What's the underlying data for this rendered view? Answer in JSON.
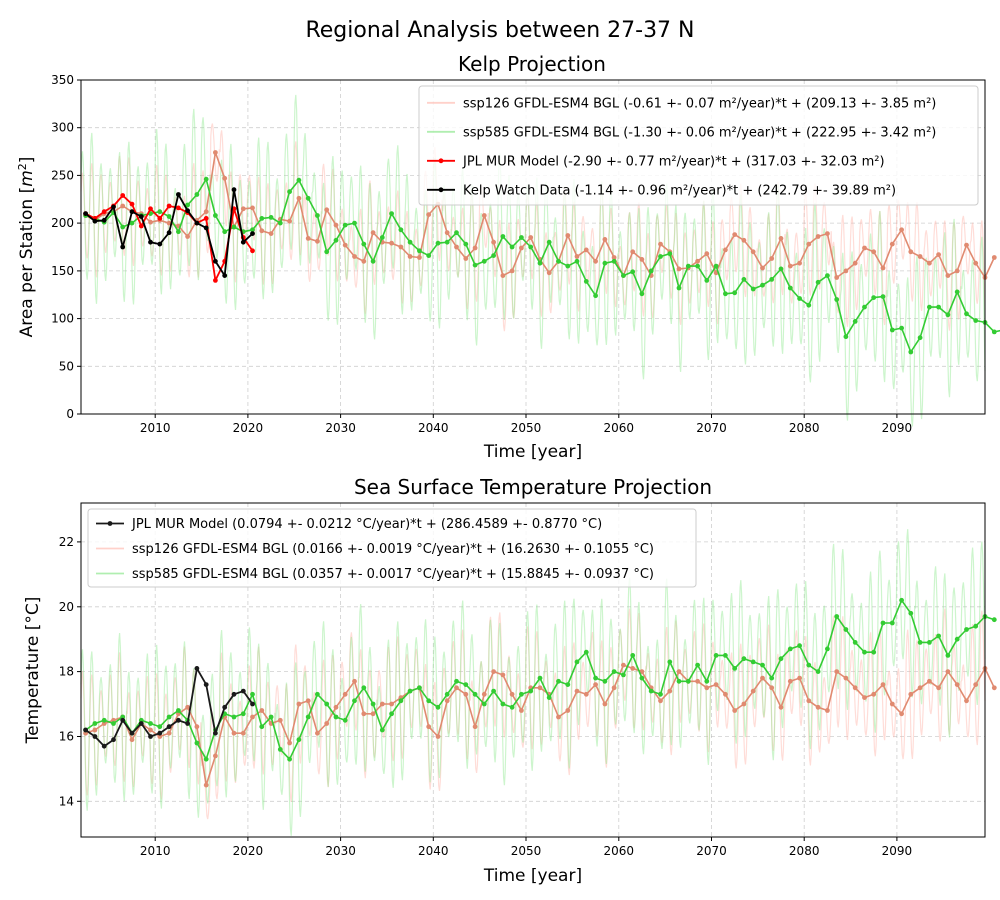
{
  "figure": {
    "suptitle": "Regional Analysis between 27-37 N"
  },
  "colors": {
    "ssp126_monthly": "#ffb3a8",
    "ssp126_annual": "#e08a70",
    "ssp585_monthly": "#90e890",
    "ssp585_annual": "#33cc33",
    "jpl_kelp": "#ff0000",
    "kelpwatch": "#000000",
    "jpl_sst": "#1a1a1a"
  },
  "chart_data": [
    {
      "type": "line",
      "title": "Kelp Projection",
      "xlabel": "Time [year]",
      "ylabel": "Area per Station [m²]",
      "xlim": [
        2002,
        2099.5
      ],
      "ylim": [
        0,
        350
      ],
      "xticks": [
        2010,
        2020,
        2030,
        2040,
        2050,
        2060,
        2070,
        2080,
        2090
      ],
      "yticks": [
        0,
        50,
        100,
        150,
        200,
        250,
        300,
        350
      ],
      "grid": true,
      "legend_position": "upper right",
      "legend": [
        {
          "label": "ssp126 GFDL-ESM4 BGL (-0.61 +- 0.07 m²/year)*t + (209.13 +- 3.85 m²)",
          "series": "ssp126_monthly"
        },
        {
          "label": "ssp585 GFDL-ESM4 BGL (-1.30 +- 0.06 m²/year)*t + (222.95 +- 3.42 m²)",
          "series": "ssp585_monthly"
        },
        {
          "label": "JPL MUR Model (-2.90 +- 0.77 m²/year)*t + (317.03 +- 32.03 m²)",
          "series": "jpl_kelp"
        },
        {
          "label": "Kelp Watch Data (-1.14 +- 0.96 m²/year)*t + (242.79 +- 39.89 m²)",
          "series": "kelpwatch"
        }
      ],
      "monthly_bands": {
        "ssp126": {
          "start": 2002,
          "amplitude": 60
        },
        "ssp585": {
          "start": 2002,
          "amplitude": 90
        }
      },
      "series": [
        {
          "key": "ssp126_annual",
          "start": 2002,
          "values": [
            208,
            203,
            210,
            212,
            218,
            212,
            210,
            201,
            203,
            200,
            197,
            186,
            203,
            212,
            274,
            247,
            196,
            215,
            216,
            192,
            189,
            204,
            202,
            226,
            184,
            181,
            214,
            198,
            177,
            165,
            160,
            190,
            180,
            179,
            175,
            165,
            164,
            209,
            220,
            190,
            175,
            163,
            174,
            208,
            180,
            145,
            150,
            174,
            185,
            162,
            148,
            160,
            187,
            165,
            172,
            160,
            183,
            164,
            145,
            170,
            162,
            145,
            178,
            170,
            152,
            153,
            160,
            168,
            148,
            172,
            188,
            182,
            170,
            153,
            163,
            184,
            155,
            158,
            178,
            186,
            189,
            143,
            150,
            158,
            174,
            170,
            153,
            178,
            193,
            170,
            165,
            158,
            167,
            145,
            150,
            177,
            158,
            143,
            164
          ]
        },
        {
          "key": "ssp585_annual",
          "start": 2002,
          "values": [
            208,
            205,
            201,
            211,
            196,
            200,
            208,
            210,
            212,
            207,
            191,
            219,
            230,
            246,
            208,
            191,
            196,
            191,
            193,
            205,
            206,
            200,
            233,
            245,
            226,
            208,
            170,
            182,
            198,
            200,
            178,
            160,
            185,
            210,
            193,
            180,
            171,
            166,
            179,
            180,
            190,
            178,
            156,
            160,
            166,
            186,
            175,
            185,
            175,
            158,
            180,
            160,
            155,
            160,
            139,
            124,
            158,
            160,
            145,
            149,
            126,
            150,
            165,
            168,
            132,
            155,
            155,
            140,
            155,
            126,
            127,
            141,
            131,
            135,
            141,
            152,
            132,
            121,
            114,
            138,
            145,
            120,
            81,
            97,
            112,
            122,
            123,
            88,
            90,
            65,
            80,
            112,
            112,
            104,
            128,
            105,
            98,
            96,
            86,
            88
          ]
        },
        {
          "key": "jpl_kelp",
          "start": 2002,
          "values": [
            210,
            205,
            212,
            218,
            229,
            220,
            197,
            215,
            205,
            218,
            216,
            211,
            200,
            205,
            140,
            160,
            215,
            185,
            171
          ]
        },
        {
          "key": "kelpwatch",
          "start": 2002,
          "values": [
            210,
            202,
            203,
            217,
            175,
            212,
            207,
            180,
            178,
            190,
            230,
            213,
            200,
            195,
            160,
            145,
            235,
            180,
            189
          ]
        }
      ]
    },
    {
      "type": "line",
      "title": "Sea Surface Temperature Projection",
      "xlabel": "Time [year]",
      "ylabel": "Temperature [°C]",
      "xlim": [
        2002,
        2099.5
      ],
      "ylim": [
        12.9,
        23.2
      ],
      "xticks": [
        2010,
        2020,
        2030,
        2040,
        2050,
        2060,
        2070,
        2080,
        2090
      ],
      "yticks": [
        14,
        16,
        18,
        20,
        22
      ],
      "grid": true,
      "legend_position": "upper left",
      "legend": [
        {
          "label": "JPL MUR Model (0.0794 +- 0.0212 °C/year)*t + (286.4589 +- 0.8770 °C)",
          "series": "jpl_sst"
        },
        {
          "label": "ssp126 GFDL-ESM4 BGL (0.0166 +- 0.0019 °C/year)*t + (16.2630 +- 0.1055 °C)",
          "series": "ssp126_monthly"
        },
        {
          "label": "ssp585 GFDL-ESM4 BGL (0.0357 +- 0.0017 °C/year)*t + (15.8845 +- 0.0937 °C)",
          "series": "ssp585_monthly"
        }
      ],
      "monthly_bands": {
        "ssp126": {
          "start": 2002,
          "amplitude": 2.0
        },
        "ssp585": {
          "start": 2002,
          "amplitude": 2.6
        }
      },
      "series": [
        {
          "key": "ssp126_annual",
          "start": 2002,
          "values": [
            16.1,
            16.2,
            16.4,
            16.5,
            16.6,
            15.9,
            16.4,
            16.2,
            16.0,
            16.1,
            16.7,
            16.9,
            16.3,
            14.5,
            15.4,
            16.6,
            16.1,
            16.1,
            16.6,
            16.8,
            16.4,
            16.5,
            15.8,
            17.0,
            17.1,
            16.1,
            16.4,
            16.9,
            17.3,
            17.7,
            16.7,
            16.7,
            17.0,
            17.0,
            17.2,
            17.4,
            17.5,
            16.3,
            16.0,
            17.1,
            17.5,
            17.3,
            16.3,
            17.3,
            18.0,
            17.9,
            17.3,
            16.8,
            17.5,
            17.5,
            17.3,
            16.6,
            16.8,
            17.4,
            17.3,
            17.6,
            17.0,
            17.5,
            18.2,
            18.1,
            18.0,
            17.5,
            17.1,
            17.4,
            18.0,
            17.7,
            17.7,
            17.5,
            17.6,
            17.3,
            16.8,
            17.0,
            17.4,
            17.8,
            17.5,
            16.9,
            17.7,
            17.8,
            17.1,
            16.9,
            16.8,
            18.0,
            17.8,
            17.5,
            17.2,
            17.3,
            17.6,
            17.0,
            16.7,
            17.3,
            17.5,
            17.7,
            17.5,
            18.0,
            17.6,
            17.1,
            17.6,
            18.1,
            17.5
          ]
        },
        {
          "key": "ssp585_annual",
          "start": 2002,
          "values": [
            16.2,
            16.4,
            16.5,
            16.4,
            16.6,
            16.1,
            16.5,
            16.4,
            16.3,
            16.6,
            16.8,
            16.5,
            15.8,
            15.3,
            16.2,
            16.7,
            16.6,
            16.7,
            17.3,
            16.3,
            16.6,
            15.6,
            15.3,
            15.9,
            16.6,
            17.3,
            17.0,
            16.6,
            16.5,
            17.1,
            17.5,
            17.0,
            16.2,
            16.7,
            17.1,
            17.4,
            17.5,
            17.1,
            16.9,
            17.3,
            17.7,
            17.6,
            17.3,
            17.0,
            17.4,
            17.0,
            16.9,
            17.3,
            17.4,
            17.8,
            17.2,
            17.7,
            17.6,
            18.3,
            18.6,
            17.8,
            17.7,
            18.0,
            17.9,
            18.5,
            17.8,
            17.4,
            17.3,
            18.3,
            17.7,
            17.7,
            18.2,
            17.7,
            18.5,
            18.5,
            18.1,
            18.4,
            18.3,
            18.2,
            17.8,
            18.4,
            18.7,
            18.8,
            18.2,
            18.0,
            18.7,
            19.7,
            19.3,
            18.9,
            18.6,
            18.6,
            19.5,
            19.5,
            20.2,
            19.8,
            18.9,
            18.9,
            19.1,
            18.5,
            19.0,
            19.3,
            19.4,
            19.7,
            19.6
          ]
        },
        {
          "key": "jpl_sst",
          "start": 2002,
          "values": [
            16.2,
            16.0,
            15.7,
            15.9,
            16.5,
            16.1,
            16.4,
            16.0,
            16.1,
            16.3,
            16.5,
            16.4,
            18.1,
            17.6,
            16.1,
            16.9,
            17.3,
            17.4,
            17.0
          ]
        }
      ]
    }
  ]
}
